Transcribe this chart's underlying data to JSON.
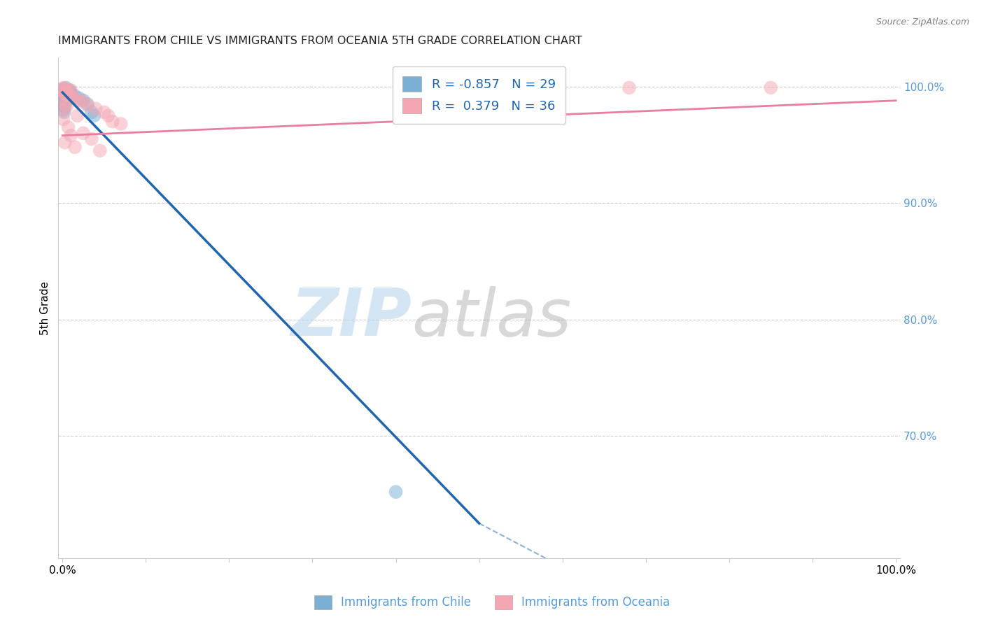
{
  "title": "IMMIGRANTS FROM CHILE VS IMMIGRANTS FROM OCEANIA 5TH GRADE CORRELATION CHART",
  "source": "Source: ZipAtlas.com",
  "ylabel_left": "5th Grade",
  "x_tick_labels": [
    "0.0%",
    "",
    "",
    "",
    "",
    "",
    "",
    "",
    "",
    "",
    "100.0%"
  ],
  "y_ticks_right": [
    0.7,
    0.8,
    0.9,
    1.0
  ],
  "y_tick_labels_right": [
    "70.0%",
    "80.0%",
    "90.0%",
    "100.0%"
  ],
  "ylim": [
    0.595,
    1.025
  ],
  "xlim": [
    -0.005,
    1.005
  ],
  "chile_color": "#7bafd4",
  "oceania_color": "#f4a7b3",
  "chile_line_color": "#2166ac",
  "oceania_line_color": "#e87fa0",
  "legend_label_chile": "Immigrants from Chile",
  "legend_label_oceania": "Immigrants from Oceania",
  "R_chile": -0.857,
  "N_chile": 29,
  "R_oceania": 0.379,
  "N_oceania": 36,
  "chile_line_x": [
    0.0,
    0.5
  ],
  "chile_line_y": [
    0.995,
    0.625
  ],
  "oceania_line_x": [
    0.0,
    1.0
  ],
  "oceania_line_y": [
    0.958,
    0.988
  ],
  "chile_scatter": [
    [
      0.001,
      0.998
    ],
    [
      0.002,
      0.996
    ],
    [
      0.003,
      0.997
    ],
    [
      0.004,
      0.999
    ],
    [
      0.005,
      0.995
    ],
    [
      0.001,
      0.994
    ],
    [
      0.002,
      0.993
    ],
    [
      0.003,
      0.996
    ],
    [
      0.006,
      0.994
    ],
    [
      0.007,
      0.993
    ],
    [
      0.004,
      0.992
    ],
    [
      0.002,
      0.991
    ],
    [
      0.008,
      0.997
    ],
    [
      0.009,
      0.996
    ],
    [
      0.003,
      0.99
    ],
    [
      0.005,
      0.988
    ],
    [
      0.01,
      0.994
    ],
    [
      0.015,
      0.992
    ],
    [
      0.001,
      0.987
    ],
    [
      0.002,
      0.985
    ],
    [
      0.02,
      0.99
    ],
    [
      0.025,
      0.988
    ],
    [
      0.003,
      0.983
    ],
    [
      0.03,
      0.985
    ],
    [
      0.035,
      0.978
    ],
    [
      0.038,
      0.975
    ],
    [
      0.4,
      0.652
    ],
    [
      0.001,
      0.98
    ],
    [
      0.002,
      0.978
    ]
  ],
  "oceania_scatter": [
    [
      0.001,
      0.999
    ],
    [
      0.002,
      0.998
    ],
    [
      0.003,
      0.997
    ],
    [
      0.005,
      0.998
    ],
    [
      0.007,
      0.996
    ],
    [
      0.01,
      0.997
    ],
    [
      0.002,
      0.995
    ],
    [
      0.003,
      0.994
    ],
    [
      0.004,
      0.993
    ],
    [
      0.006,
      0.993
    ],
    [
      0.008,
      0.992
    ],
    [
      0.001,
      0.99
    ],
    [
      0.012,
      0.991
    ],
    [
      0.015,
      0.99
    ],
    [
      0.02,
      0.988
    ],
    [
      0.003,
      0.985
    ],
    [
      0.025,
      0.987
    ],
    [
      0.005,
      0.983
    ],
    [
      0.03,
      0.984
    ],
    [
      0.002,
      0.98
    ],
    [
      0.04,
      0.981
    ],
    [
      0.05,
      0.978
    ],
    [
      0.018,
      0.975
    ],
    [
      0.001,
      0.972
    ],
    [
      0.06,
      0.97
    ],
    [
      0.007,
      0.965
    ],
    [
      0.025,
      0.96
    ],
    [
      0.01,
      0.958
    ],
    [
      0.035,
      0.955
    ],
    [
      0.003,
      0.952
    ],
    [
      0.015,
      0.948
    ],
    [
      0.045,
      0.945
    ],
    [
      0.055,
      0.975
    ],
    [
      0.07,
      0.968
    ],
    [
      0.68,
      0.999
    ],
    [
      0.85,
      0.999
    ]
  ],
  "watermark_zip": "ZIP",
  "watermark_atlas": "atlas",
  "background_color": "#ffffff",
  "grid_color": "#cccccc",
  "title_color": "#222222",
  "right_axis_color": "#5b9bd5",
  "bottom_legend_color": "#5b9bd5"
}
